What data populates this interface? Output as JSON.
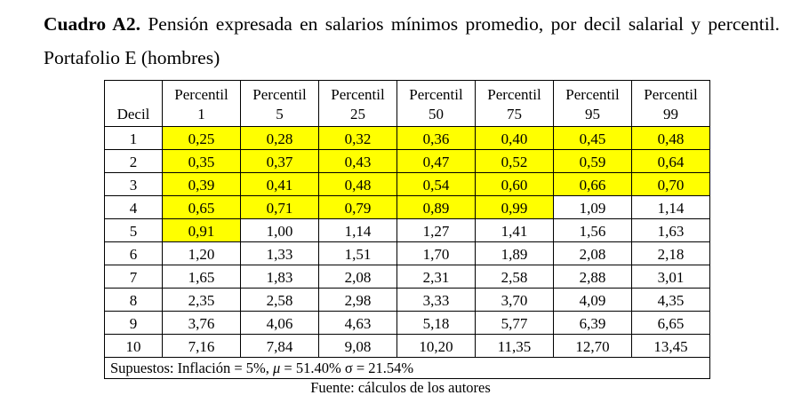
{
  "caption": {
    "label": "Cuadro A2.",
    "text": "Pensión expresada en salarios mínimos promedio, por decil salarial y percentil.  Portafolio E (hombres)"
  },
  "table": {
    "header": {
      "decil": "Decil",
      "columns": [
        [
          "Percentil",
          "1"
        ],
        [
          "Percentil",
          "5"
        ],
        [
          "Percentil",
          "25"
        ],
        [
          "Percentil",
          "50"
        ],
        [
          "Percentil",
          "75"
        ],
        [
          "Percentil",
          "95"
        ],
        [
          "Percentil",
          "99"
        ]
      ]
    },
    "rows": [
      {
        "decil": "1",
        "values": [
          "0,25",
          "0,28",
          "0,32",
          "0,36",
          "0,40",
          "0,45",
          "0,48"
        ],
        "highlight": [
          1,
          1,
          1,
          1,
          1,
          1,
          1
        ]
      },
      {
        "decil": "2",
        "values": [
          "0,35",
          "0,37",
          "0,43",
          "0,47",
          "0,52",
          "0,59",
          "0,64"
        ],
        "highlight": [
          1,
          1,
          1,
          1,
          1,
          1,
          1
        ]
      },
      {
        "decil": "3",
        "values": [
          "0,39",
          "0,41",
          "0,48",
          "0,54",
          "0,60",
          "0,66",
          "0,70"
        ],
        "highlight": [
          1,
          1,
          1,
          1,
          1,
          1,
          1
        ]
      },
      {
        "decil": "4",
        "values": [
          "0,65",
          "0,71",
          "0,79",
          "0,89",
          "0,99",
          "1,09",
          "1,14"
        ],
        "highlight": [
          1,
          1,
          1,
          1,
          1,
          0,
          0
        ]
      },
      {
        "decil": "5",
        "values": [
          "0,91",
          "1,00",
          "1,14",
          "1,27",
          "1,41",
          "1,56",
          "1,63"
        ],
        "highlight": [
          1,
          0,
          0,
          0,
          0,
          0,
          0
        ]
      },
      {
        "decil": "6",
        "values": [
          "1,20",
          "1,33",
          "1,51",
          "1,70",
          "1,89",
          "2,08",
          "2,18"
        ],
        "highlight": [
          0,
          0,
          0,
          0,
          0,
          0,
          0
        ]
      },
      {
        "decil": "7",
        "values": [
          "1,65",
          "1,83",
          "2,08",
          "2,31",
          "2,58",
          "2,88",
          "3,01"
        ],
        "highlight": [
          0,
          0,
          0,
          0,
          0,
          0,
          0
        ]
      },
      {
        "decil": "8",
        "values": [
          "2,35",
          "2,58",
          "2,98",
          "3,33",
          "3,70",
          "4,09",
          "4,35"
        ],
        "highlight": [
          0,
          0,
          0,
          0,
          0,
          0,
          0
        ]
      },
      {
        "decil": "9",
        "values": [
          "3,76",
          "4,06",
          "4,63",
          "5,18",
          "5,77",
          "6,39",
          "6,65"
        ],
        "highlight": [
          0,
          0,
          0,
          0,
          0,
          0,
          0
        ]
      },
      {
        "decil": "10",
        "values": [
          "7,16",
          "7,84",
          "9,08",
          "10,20",
          "11,35",
          "12,70",
          "13,45"
        ],
        "highlight": [
          0,
          0,
          0,
          0,
          0,
          0,
          0
        ]
      }
    ],
    "highlight_color": "#ffff00",
    "assumptions": {
      "prefix": "Supuestos: Inflación = 5%,  ",
      "mu_symbol": "μ",
      "suffix": " = 51.40% σ = 21.54%"
    }
  },
  "source": "Fuente: cálculos de los autores"
}
